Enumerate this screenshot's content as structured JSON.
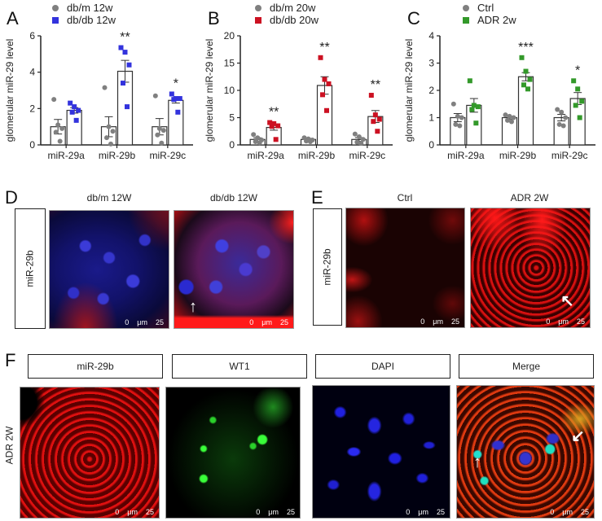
{
  "panels": {
    "A": {
      "letter": "A"
    },
    "B": {
      "letter": "B"
    },
    "C": {
      "letter": "C"
    },
    "D": {
      "letter": "D",
      "row_label": "miR-29b",
      "titles": [
        "db/m 12W",
        "db/db 12W"
      ]
    },
    "E": {
      "letter": "E",
      "row_label": "miR-29b",
      "titles": [
        "Ctrl",
        "ADR 2W"
      ]
    },
    "F": {
      "letter": "F",
      "row_label": "ADR 2W",
      "titles": [
        "miR-29b",
        "WT1",
        "DAPI",
        "Merge"
      ]
    }
  },
  "scalebar": {
    "start": "0",
    "unit": "μm",
    "end": "25"
  },
  "colors": {
    "control": "#808080",
    "blue": "#3333dd",
    "red": "#cc1122",
    "green": "#33992a"
  },
  "chart_data": [
    {
      "type": "bar",
      "panel": "A",
      "title": "",
      "xlabel": "",
      "ylabel": "glomerular miR-29 level",
      "ylim": [
        0,
        6
      ],
      "yticks": [
        0,
        2,
        4,
        6
      ],
      "categories": [
        "miR-29a",
        "miR-29b",
        "miR-29c"
      ],
      "series": [
        {
          "name": "db/m 12w",
          "marker": "circle",
          "color": "#808080",
          "values": [
            1.0,
            1.0,
            1.0
          ],
          "sem": [
            0.4,
            0.55,
            0.45
          ],
          "points": [
            [
              2.5,
              1.1,
              0.9,
              0.7,
              0.2
            ],
            [
              3.15,
              1.0,
              0.75,
              0.4,
              0.05
            ],
            [
              2.7,
              0.9,
              0.8,
              0.55,
              0.1
            ]
          ]
        },
        {
          "name": "db/db 12w",
          "marker": "square",
          "color": "#3333dd",
          "values": [
            1.9,
            4.05,
            2.45
          ],
          "sem": [
            0.15,
            0.6,
            0.15
          ],
          "points": [
            [
              2.3,
              2.1,
              1.9,
              1.8,
              1.35
            ],
            [
              5.35,
              5.1,
              4.4,
              3.4,
              2.1
            ],
            [
              2.8,
              2.55,
              2.55,
              2.5,
              1.8
            ]
          ]
        }
      ],
      "significance": [
        "",
        "**",
        "*"
      ],
      "legend": [
        "db/m 12w",
        "db/db 12w"
      ],
      "legend_position": "top-left"
    },
    {
      "type": "bar",
      "panel": "B",
      "title": "",
      "xlabel": "",
      "ylabel": "glomerular miR-29 level",
      "ylim": [
        0,
        20
      ],
      "yticks": [
        0,
        5,
        10,
        15,
        20
      ],
      "categories": [
        "miR-29a",
        "miR-29b",
        "miR-29c"
      ],
      "series": [
        {
          "name": "db/m 20w",
          "marker": "circle",
          "color": "#808080",
          "values": [
            1.0,
            1.0,
            1.0
          ],
          "sem": [
            0.3,
            0.2,
            0.35
          ],
          "points": [
            [
              1.9,
              1.3,
              0.9,
              0.6,
              0.4
            ],
            [
              1.3,
              1.1,
              0.9,
              0.7,
              0.6
            ],
            [
              2.0,
              1.5,
              1.0,
              0.5,
              0.3
            ]
          ]
        },
        {
          "name": "db/db 20w",
          "marker": "square",
          "color": "#cc1122",
          "values": [
            3.2,
            10.9,
            5.2
          ],
          "sem": [
            0.5,
            1.6,
            1.1
          ],
          "points": [
            [
              4.1,
              3.9,
              3.5,
              3.4,
              1.0
            ],
            [
              16.0,
              12.0,
              11.2,
              9.2,
              6.3
            ],
            [
              9.1,
              5.5,
              4.7,
              4.3,
              2.5
            ]
          ]
        }
      ],
      "significance": [
        "**",
        "**",
        "**"
      ],
      "legend": [
        "db/m 20w",
        "db/db 20w"
      ],
      "legend_position": "top-left"
    },
    {
      "type": "bar",
      "panel": "C",
      "title": "",
      "xlabel": "",
      "ylabel": "glomerular miR-29 level",
      "ylim": [
        0,
        4
      ],
      "yticks": [
        0,
        1,
        2,
        3,
        4
      ],
      "categories": [
        "miR-29a",
        "miR-29b",
        "miR-29c"
      ],
      "series": [
        {
          "name": "Ctrl",
          "marker": "circle",
          "color": "#808080",
          "values": [
            1.0,
            1.0,
            1.0
          ],
          "sem": [
            0.15,
            0.05,
            0.12
          ],
          "points": [
            [
              1.5,
              1.05,
              1.0,
              0.75,
              0.7
            ],
            [
              1.1,
              1.05,
              1.0,
              0.9,
              0.85
            ],
            [
              1.3,
              1.2,
              1.0,
              0.75,
              0.7
            ]
          ]
        },
        {
          "name": "ADR 2w",
          "marker": "square",
          "color": "#33992a",
          "values": [
            1.45,
            2.5,
            1.7
          ],
          "sem": [
            0.25,
            0.15,
            0.22
          ],
          "points": [
            [
              2.35,
              1.45,
              1.4,
              1.3,
              0.8
            ],
            [
              3.2,
              2.7,
              2.4,
              2.2,
              2.05
            ],
            [
              2.35,
              2.05,
              1.6,
              1.45,
              1.0
            ]
          ]
        }
      ],
      "significance": [
        "",
        "***",
        "*"
      ],
      "legend": [
        "Ctrl",
        "ADR 2w"
      ],
      "legend_position": "top-left"
    }
  ]
}
